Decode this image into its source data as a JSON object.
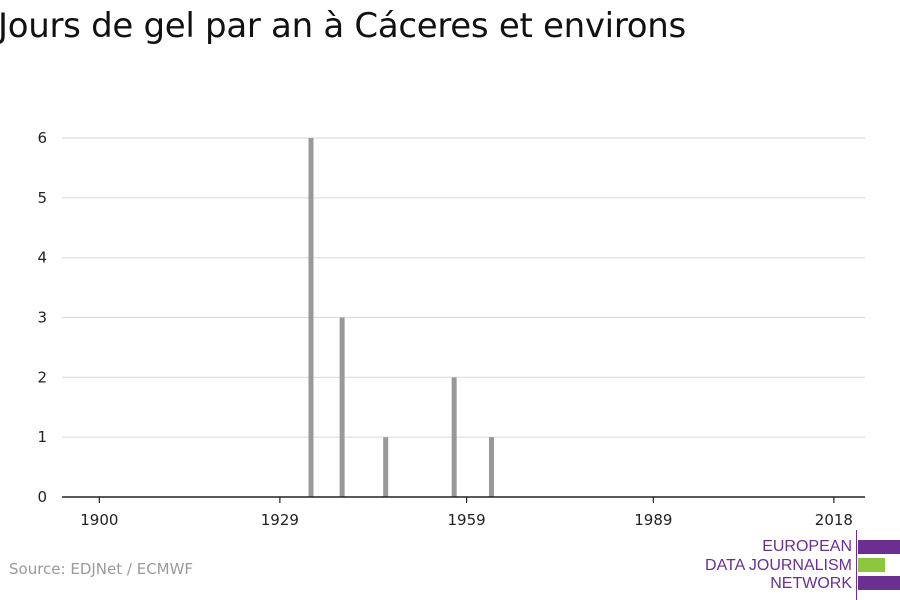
{
  "title": "Jours de gel par an à Cáceres et environs",
  "source": "Source: EDJNet / ECMWF",
  "logo": {
    "lines": [
      "EUROPEAN",
      "DATA JOURNALISM",
      "NETWORK"
    ],
    "colors": {
      "purple": "#6b2f8f",
      "green": "#8cc63f"
    }
  },
  "colors": {
    "bars": "#999999",
    "grid": "#dddddd",
    "axis": "#222222",
    "text": "#222222"
  },
  "chart_data": {
    "type": "bar",
    "title": "Jours de gel par an à Cáceres et environs",
    "xlabel": "",
    "ylabel": "",
    "xlim": [
      1894,
      2023
    ],
    "ylim": [
      0,
      6
    ],
    "x_ticks": [
      1900,
      1929,
      1959,
      1989,
      2018
    ],
    "y_ticks": [
      0,
      1,
      2,
      3,
      4,
      5,
      6
    ],
    "grid": true,
    "x": [
      1934,
      1939,
      1946,
      1957,
      1963
    ],
    "values": [
      6,
      3,
      1,
      2,
      1
    ]
  }
}
